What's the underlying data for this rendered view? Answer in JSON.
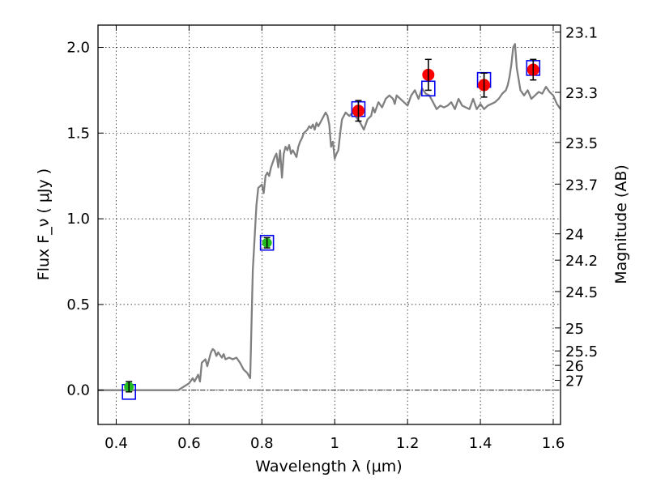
{
  "chart_data": {
    "type": "scatter",
    "xlabel": "Wavelength  λ (μm)",
    "ylabel": "Flux  F_ν  ( μJy )",
    "ylabel_right": "Magnitude (AB)",
    "xlim": [
      0.35,
      1.62
    ],
    "ylim": [
      -0.2,
      2.13
    ],
    "grid": true,
    "x_ticks": [
      0.4,
      0.6,
      0.8,
      1.0,
      1.2,
      1.4,
      1.6
    ],
    "x_tick_labels": [
      "0.4",
      "0.6",
      "0.8",
      "1",
      "1.2",
      "1.4",
      "1.6"
    ],
    "y_ticks": [
      0.0,
      0.5,
      1.0,
      1.5,
      2.0
    ],
    "y_tick_labels": [
      "0.0",
      "0.5",
      "1.0",
      "1.5",
      "2.0"
    ],
    "right_ticks": [
      {
        "label": "23.1",
        "mag": 23.1
      },
      {
        "label": "23.3",
        "mag": 23.3
      },
      {
        "label": "23.5",
        "mag": 23.5
      },
      {
        "label": "23.7",
        "mag": 23.7
      },
      {
        "label": "24",
        "mag": 24.0
      },
      {
        "label": "24.2",
        "mag": 24.2
      },
      {
        "label": "24.5",
        "mag": 24.5
      },
      {
        "label": "25",
        "mag": 25.0
      },
      {
        "label": "25.5",
        "mag": 25.5
      },
      {
        "label": "26",
        "mag": 26.0
      },
      {
        "label": "27",
        "mag": 27.0
      }
    ],
    "colors": {
      "model": "#808080",
      "detected": "#ff0000",
      "optical": "#22bb22",
      "model_photometry": "#0000ee",
      "errorbar": "#000000"
    },
    "model_sed": {
      "x": [
        0.35,
        0.57,
        0.585,
        0.6,
        0.61,
        0.615,
        0.625,
        0.63,
        0.635,
        0.645,
        0.65,
        0.66,
        0.665,
        0.67,
        0.675,
        0.68,
        0.69,
        0.695,
        0.7,
        0.71,
        0.72,
        0.73,
        0.74,
        0.75,
        0.76,
        0.768,
        0.775,
        0.785,
        0.79,
        0.8,
        0.805,
        0.81,
        0.815,
        0.82,
        0.825,
        0.83,
        0.835,
        0.84,
        0.845,
        0.85,
        0.855,
        0.86,
        0.865,
        0.87,
        0.875,
        0.88,
        0.885,
        0.89,
        0.895,
        0.9,
        0.905,
        0.91,
        0.915,
        0.92,
        0.925,
        0.93,
        0.935,
        0.94,
        0.945,
        0.95,
        0.955,
        0.96,
        0.965,
        0.97,
        0.975,
        0.98,
        0.985,
        0.99,
        0.995,
        1.0,
        1.005,
        1.01,
        1.015,
        1.02,
        1.03,
        1.04,
        1.05,
        1.06,
        1.07,
        1.08,
        1.09,
        1.1,
        1.105,
        1.11,
        1.12,
        1.13,
        1.14,
        1.15,
        1.16,
        1.165,
        1.17,
        1.18,
        1.19,
        1.2,
        1.21,
        1.22,
        1.23,
        1.24,
        1.25,
        1.26,
        1.27,
        1.28,
        1.29,
        1.3,
        1.31,
        1.32,
        1.33,
        1.34,
        1.35,
        1.36,
        1.37,
        1.38,
        1.39,
        1.4,
        1.41,
        1.42,
        1.43,
        1.44,
        1.45,
        1.46,
        1.47,
        1.475,
        1.48,
        1.485,
        1.49,
        1.495,
        1.5,
        1.51,
        1.52,
        1.53,
        1.54,
        1.55,
        1.56,
        1.57,
        1.58,
        1.59,
        1.6,
        1.61,
        1.62
      ],
      "y": [
        0.0,
        0.0,
        0.02,
        0.04,
        0.07,
        0.05,
        0.09,
        0.05,
        0.16,
        0.18,
        0.14,
        0.22,
        0.24,
        0.23,
        0.2,
        0.22,
        0.19,
        0.21,
        0.18,
        0.19,
        0.18,
        0.19,
        0.16,
        0.12,
        0.1,
        0.07,
        0.7,
        1.08,
        1.18,
        1.2,
        1.15,
        1.25,
        1.27,
        1.25,
        1.3,
        1.33,
        1.36,
        1.38,
        1.3,
        1.4,
        1.24,
        1.38,
        1.42,
        1.4,
        1.43,
        1.38,
        1.4,
        1.38,
        1.36,
        1.42,
        1.45,
        1.47,
        1.5,
        1.51,
        1.52,
        1.54,
        1.53,
        1.55,
        1.52,
        1.56,
        1.54,
        1.56,
        1.58,
        1.6,
        1.62,
        1.6,
        1.55,
        1.42,
        1.45,
        1.35,
        1.38,
        1.4,
        1.5,
        1.58,
        1.62,
        1.6,
        1.62,
        1.59,
        1.56,
        1.52,
        1.58,
        1.6,
        1.65,
        1.62,
        1.68,
        1.65,
        1.7,
        1.72,
        1.7,
        1.67,
        1.72,
        1.7,
        1.68,
        1.66,
        1.72,
        1.75,
        1.7,
        1.76,
        1.73,
        1.72,
        1.68,
        1.64,
        1.66,
        1.65,
        1.66,
        1.68,
        1.64,
        1.7,
        1.66,
        1.65,
        1.64,
        1.7,
        1.64,
        1.67,
        1.64,
        1.66,
        1.67,
        1.68,
        1.7,
        1.73,
        1.75,
        1.78,
        1.83,
        1.9,
        2.0,
        2.02,
        1.88,
        1.75,
        1.72,
        1.75,
        1.7,
        1.72,
        1.74,
        1.73,
        1.77,
        1.74,
        1.72,
        1.67,
        1.64
      ]
    },
    "detected_flux": {
      "name": "",
      "x": [
        1.065,
        1.257,
        1.41,
        1.545
      ],
      "y": [
        1.63,
        1.84,
        1.78,
        1.87
      ],
      "yerr": [
        0.06,
        0.09,
        0.07,
        0.06
      ]
    },
    "optical_flux": {
      "name": "",
      "x": [
        0.435,
        0.814
      ],
      "y": [
        0.02,
        0.86
      ],
      "yerr": [
        0.03,
        0.03
      ]
    },
    "model_photometry": {
      "name": "",
      "x": [
        0.435,
        0.814,
        1.065,
        1.257,
        1.41,
        1.545
      ],
      "y": [
        -0.01,
        0.86,
        1.64,
        1.76,
        1.81,
        1.88
      ]
    }
  }
}
